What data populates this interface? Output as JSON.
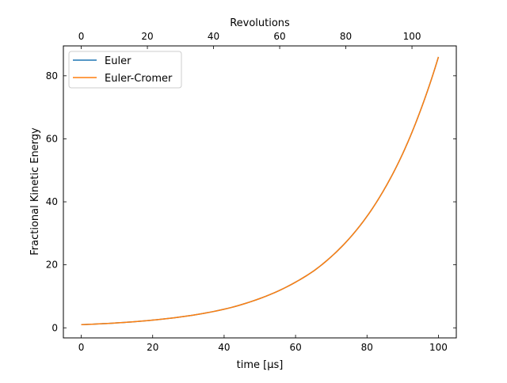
{
  "chart_data": {
    "type": "line",
    "title": "",
    "xlabel": "time [μs]",
    "ylabel": "Fractional Kinetic Energy",
    "top_xlabel": "Revolutions",
    "xlim": [
      -5,
      105
    ],
    "ylim": [
      -3.2,
      89.5
    ],
    "top_xlim": [
      -5.4,
      113.4
    ],
    "x_ticks": [
      0,
      20,
      40,
      60,
      80,
      100
    ],
    "x_tick_labels": [
      "0",
      "20",
      "40",
      "60",
      "80",
      "100"
    ],
    "y_ticks": [
      0,
      20,
      40,
      60,
      80
    ],
    "y_tick_labels": [
      "0",
      "20",
      "40",
      "60",
      "80"
    ],
    "top_x_ticks": [
      0,
      20,
      40,
      60,
      80,
      100
    ],
    "top_x_tick_labels": [
      "0",
      "20",
      "40",
      "60",
      "80",
      "100"
    ],
    "grid": false,
    "legend_position": "upper-left",
    "x": [
      0,
      10,
      20,
      30,
      40,
      50,
      60,
      65,
      70,
      75,
      80,
      85,
      90,
      95,
      100
    ],
    "series": [
      {
        "name": "Euler",
        "color": "#1f77b4",
        "values": [
          1.0,
          1.56,
          2.44,
          3.8,
          5.9,
          9.3,
          14.5,
          18.0,
          22.6,
          28.3,
          35.4,
          44.3,
          55.3,
          69.1,
          86.0
        ]
      },
      {
        "name": "Euler-Cromer",
        "color": "#ff7f0e",
        "values": [
          1.0,
          1.56,
          2.44,
          3.8,
          5.9,
          9.3,
          14.5,
          18.0,
          22.6,
          28.3,
          35.4,
          44.3,
          55.3,
          69.1,
          86.0
        ]
      }
    ]
  }
}
